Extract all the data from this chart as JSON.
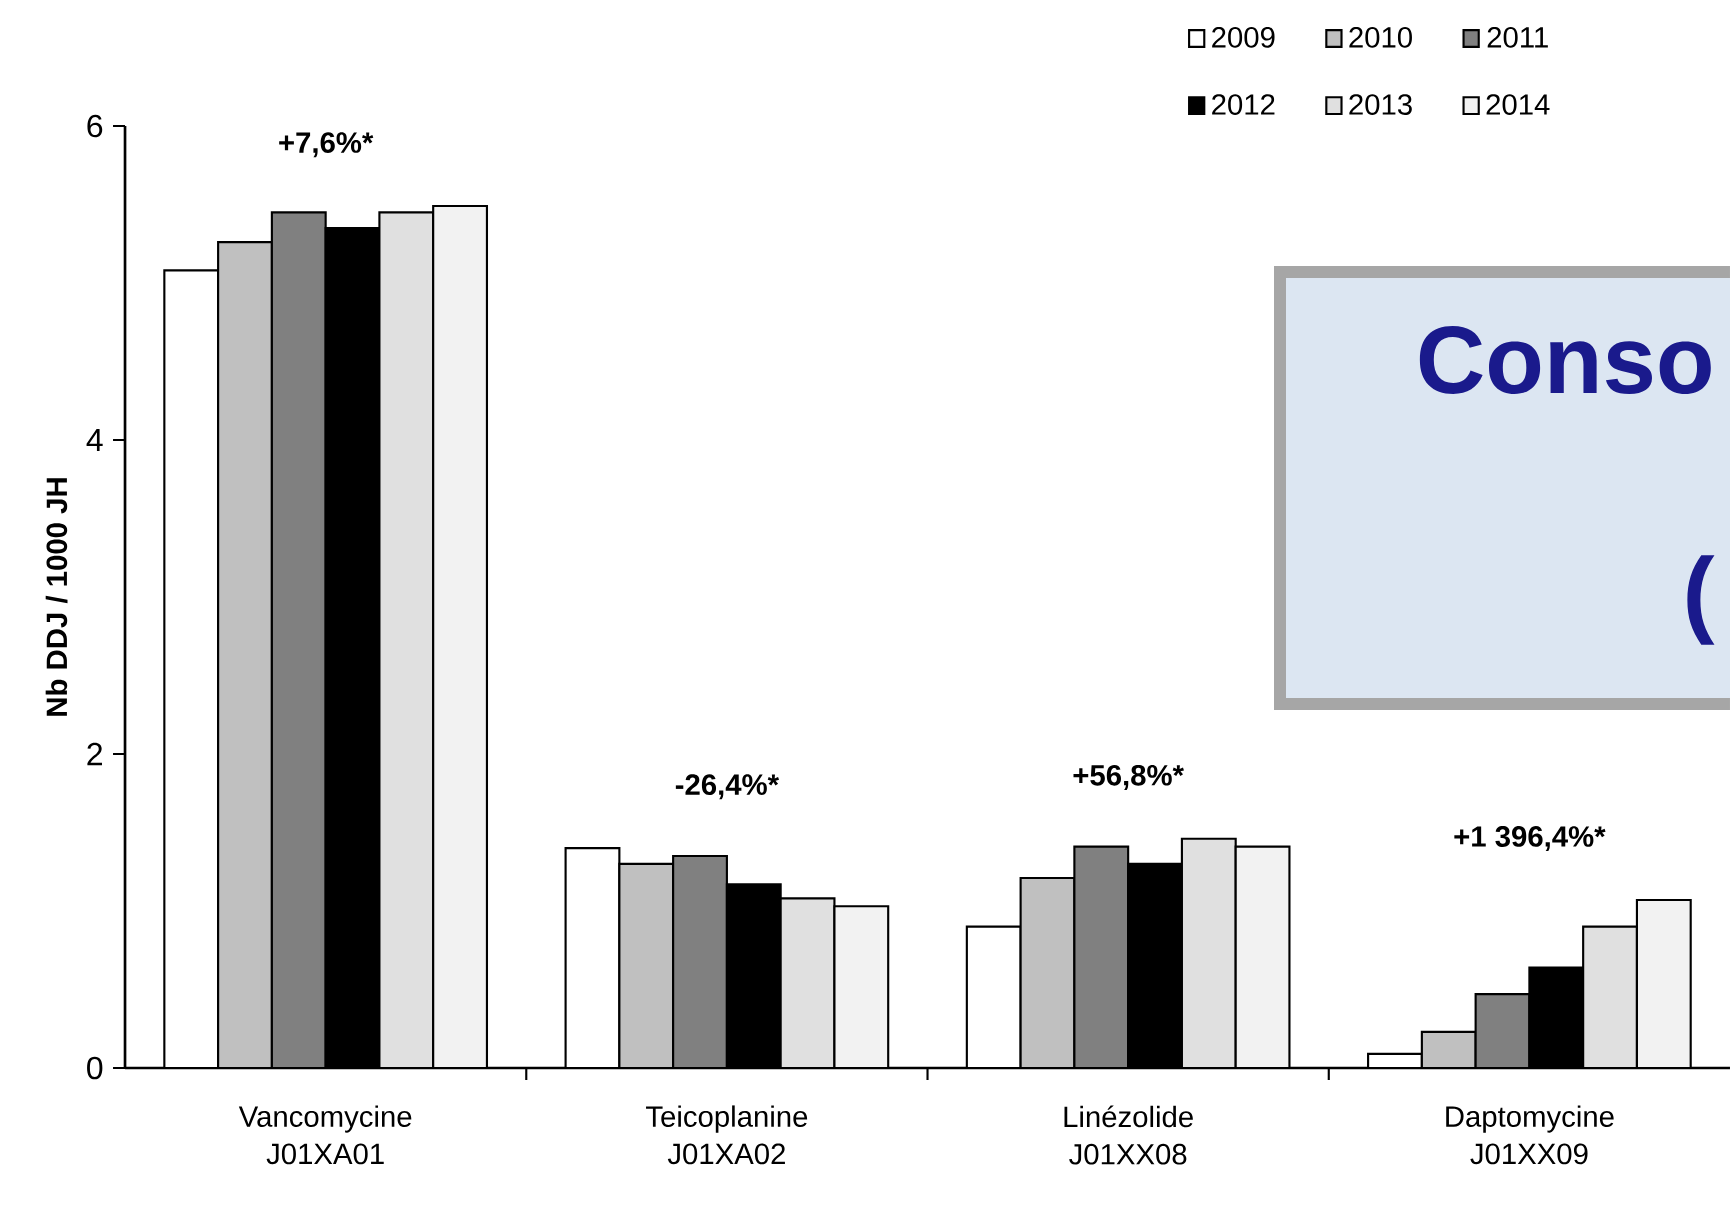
{
  "chart_data": {
    "type": "bar",
    "ylabel": "Nb DDJ / 1000 JH",
    "categories": [
      "Vancomycine J01XA01",
      "Teicoplanine J01XA02",
      "Linézolide J01XX08",
      "Daptomycine J01XX09"
    ],
    "series": [
      {
        "name": "2009",
        "color": "#ffffff",
        "values": [
          5.08,
          1.4,
          0.9,
          0.09
        ]
      },
      {
        "name": "2010",
        "color": "#c0c0c0",
        "values": [
          5.26,
          1.3,
          1.21,
          0.23
        ]
      },
      {
        "name": "2011",
        "color": "#808080",
        "values": [
          5.45,
          1.35,
          1.41,
          0.47
        ]
      },
      {
        "name": "2012",
        "color": "#000000",
        "values": [
          5.35,
          1.17,
          1.3,
          0.64
        ]
      },
      {
        "name": "2013",
        "color": "#e0e0e0",
        "values": [
          5.45,
          1.08,
          1.46,
          0.9
        ]
      },
      {
        "name": "2014",
        "color": "#f2f2f2",
        "values": [
          5.49,
          1.03,
          1.41,
          1.07
        ]
      }
    ],
    "ylim": [
      0,
      6
    ],
    "yticks": [
      0,
      2,
      4,
      6
    ],
    "legend": "top right",
    "annotations": [
      "+7,6%*",
      "-26,4%*",
      "+56,8%*",
      "+1 396,4%*",
      "Conso",
      "("
    ]
  }
}
